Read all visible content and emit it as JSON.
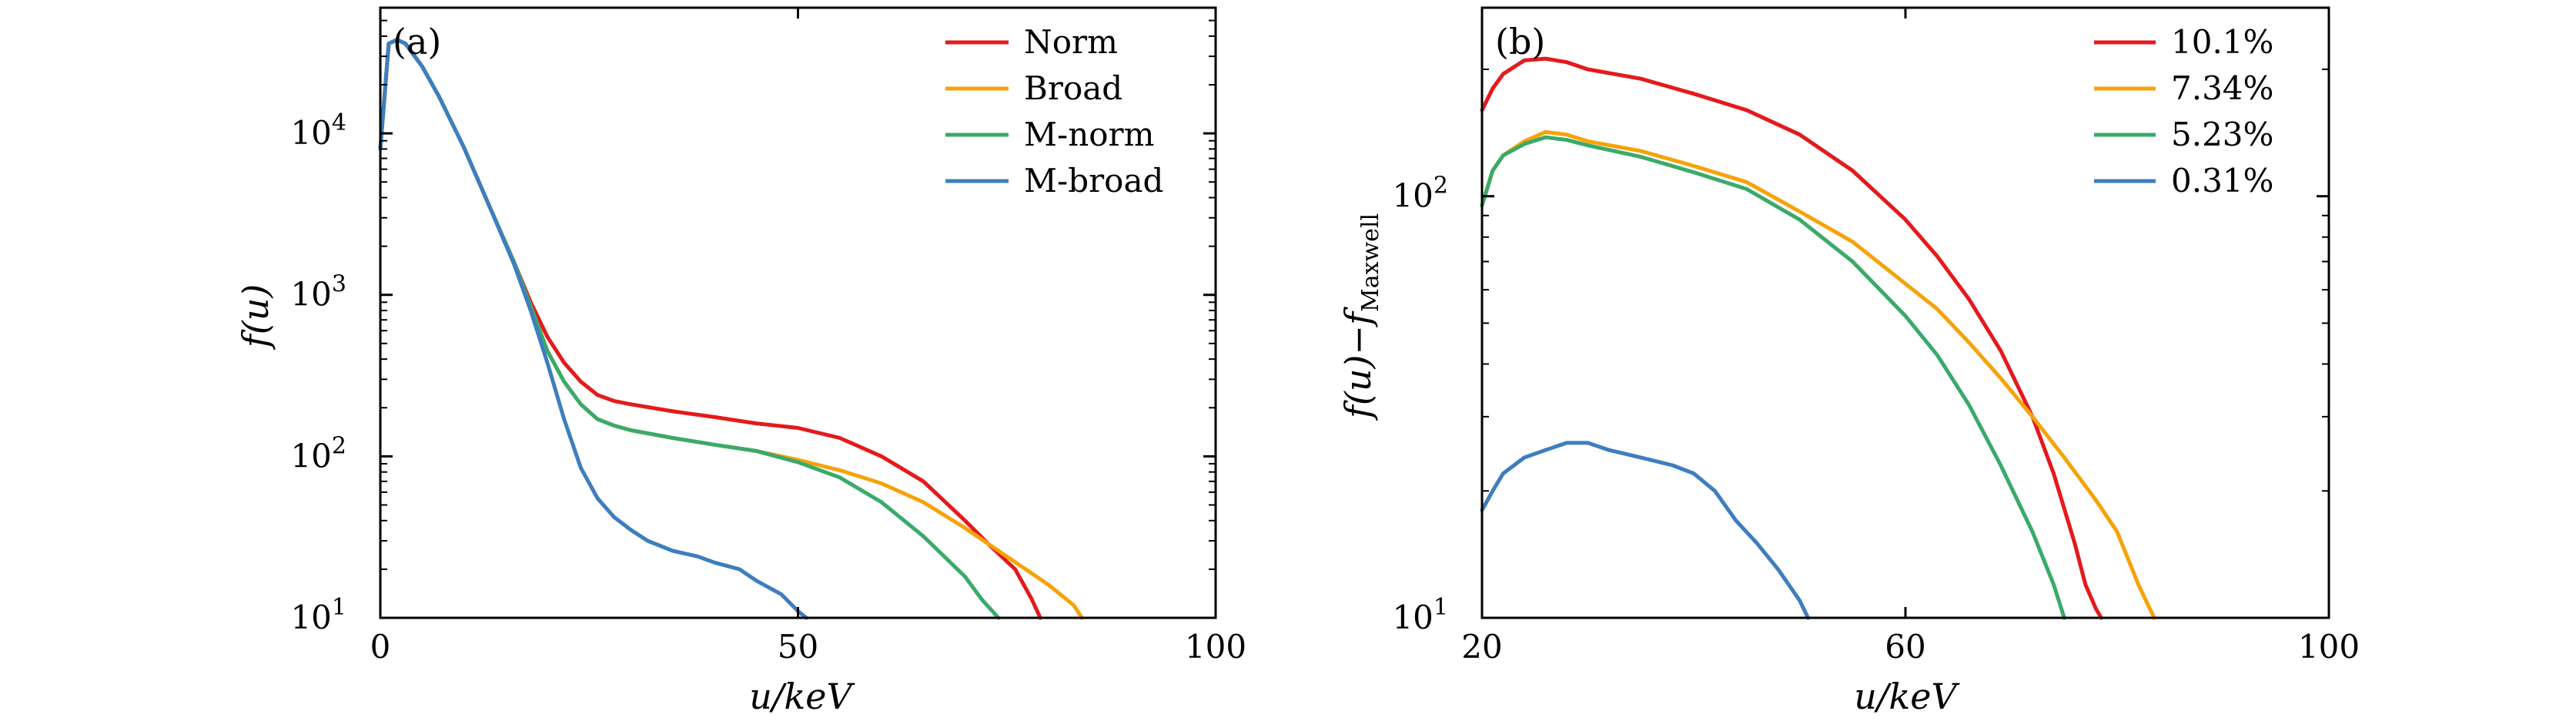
{
  "figure_caption": "",
  "chart_data": [
    {
      "type": "line",
      "panel_label": "(a)",
      "xlabel": "u/keV",
      "ylabel": "f(u)",
      "yscale": "log",
      "xlim": [
        0,
        100
      ],
      "ylim": [
        10,
        60000
      ],
      "x_ticks": [
        {
          "value": 0,
          "label": "0"
        },
        {
          "value": 50,
          "label": "50"
        },
        {
          "value": 100,
          "label": "100"
        }
      ],
      "y_ticks": [
        {
          "value": 10,
          "base": "10",
          "exp": "1"
        },
        {
          "value": 100,
          "base": "10",
          "exp": "2"
        },
        {
          "value": 1000,
          "base": "10",
          "exp": "3"
        },
        {
          "value": 10000,
          "base": "10",
          "exp": "4"
        }
      ],
      "legend_position": "top-right",
      "series": [
        {
          "name": "Norm",
          "color": "#e41a1c",
          "x": [
            0,
            1,
            2,
            3,
            5,
            7,
            10,
            13,
            16,
            18,
            20,
            22,
            24,
            26,
            28,
            30,
            35,
            40,
            45,
            50,
            55,
            60,
            65,
            70,
            73,
            76,
            78,
            79
          ],
          "y": [
            8000,
            36000,
            38000,
            36000,
            26000,
            17000,
            8200,
            3600,
            1600,
            900,
            550,
            380,
            290,
            240,
            220,
            210,
            190,
            175,
            160,
            150,
            130,
            100,
            70,
            40,
            28,
            20,
            13,
            10
          ]
        },
        {
          "name": "Broad",
          "color": "#f5a30a",
          "x": [
            0,
            1,
            2,
            3,
            5,
            7,
            10,
            13,
            16,
            18,
            20,
            22,
            24,
            26,
            28,
            30,
            35,
            40,
            45,
            50,
            55,
            60,
            65,
            70,
            75,
            80,
            83,
            84
          ],
          "y": [
            8000,
            36000,
            38000,
            36000,
            26000,
            17000,
            8200,
            3600,
            1600,
            850,
            450,
            290,
            210,
            170,
            155,
            145,
            130,
            118,
            108,
            95,
            82,
            68,
            52,
            36,
            24,
            16,
            12,
            10
          ]
        },
        {
          "name": "M-norm",
          "color": "#3aaa6a",
          "x": [
            0,
            1,
            2,
            3,
            5,
            7,
            10,
            13,
            16,
            18,
            20,
            22,
            24,
            26,
            28,
            30,
            35,
            40,
            45,
            50,
            55,
            60,
            65,
            70,
            72,
            74
          ],
          "y": [
            8000,
            36000,
            38000,
            36000,
            26000,
            17000,
            8200,
            3600,
            1600,
            850,
            450,
            290,
            210,
            170,
            155,
            145,
            130,
            118,
            108,
            92,
            74,
            52,
            32,
            18,
            13,
            10
          ]
        },
        {
          "name": "M-broad",
          "color": "#3d7ebf",
          "x": [
            0,
            1,
            2,
            3,
            5,
            7,
            10,
            13,
            16,
            18,
            20,
            22,
            24,
            26,
            28,
            30,
            32,
            35,
            38,
            40,
            43,
            45,
            48,
            50,
            51
          ],
          "y": [
            8000,
            36000,
            38000,
            36000,
            26000,
            17000,
            8200,
            3600,
            1550,
            800,
            380,
            170,
            85,
            55,
            42,
            35,
            30,
            26,
            24,
            22,
            20,
            17,
            14,
            11,
            10
          ]
        }
      ]
    },
    {
      "type": "line",
      "panel_label": "(b)",
      "xlabel": "u/keV",
      "ylabel": "f(u)−f",
      "ylabel_sub": "Maxwell",
      "yscale": "log",
      "xlim": [
        20,
        100
      ],
      "ylim": [
        10,
        280
      ],
      "x_ticks": [
        {
          "value": 20,
          "label": "20"
        },
        {
          "value": 60,
          "label": "60"
        },
        {
          "value": 100,
          "label": "100"
        }
      ],
      "y_ticks": [
        {
          "value": 10,
          "base": "10",
          "exp": "1"
        },
        {
          "value": 100,
          "base": "10",
          "exp": "2"
        }
      ],
      "legend_position": "top-right",
      "series": [
        {
          "name": "10.1%",
          "color": "#e41a1c",
          "x": [
            20,
            21,
            22,
            24,
            26,
            28,
            30,
            35,
            40,
            45,
            50,
            55,
            60,
            63,
            66,
            69,
            72,
            74,
            76,
            77,
            78,
            78.5
          ],
          "y": [
            160,
            180,
            195,
            210,
            212,
            208,
            200,
            190,
            175,
            160,
            140,
            115,
            88,
            72,
            57,
            43,
            30,
            22,
            15,
            12,
            10.5,
            10
          ]
        },
        {
          "name": "7.34%",
          "color": "#f5a30a",
          "x": [
            20,
            21,
            22,
            24,
            26,
            28,
            30,
            35,
            40,
            45,
            50,
            55,
            60,
            63,
            66,
            69,
            72,
            75,
            78,
            80,
            82,
            83.5
          ],
          "y": [
            95,
            115,
            125,
            135,
            142,
            140,
            135,
            128,
            118,
            108,
            92,
            78,
            62,
            54,
            45,
            37,
            30,
            24,
            19,
            16,
            12,
            10
          ]
        },
        {
          "name": "5.23%",
          "color": "#3aaa6a",
          "x": [
            20,
            21,
            22,
            24,
            26,
            28,
            30,
            35,
            40,
            45,
            50,
            55,
            60,
            63,
            66,
            69,
            72,
            74,
            75
          ],
          "y": [
            95,
            115,
            125,
            133,
            138,
            136,
            132,
            124,
            114,
            104,
            88,
            70,
            52,
            42,
            32,
            23,
            16,
            12,
            10
          ]
        },
        {
          "name": "0.31%",
          "color": "#3d7ebf",
          "x": [
            20,
            21,
            22,
            24,
            26,
            28,
            30,
            32,
            35,
            38,
            40,
            42,
            44,
            46,
            48,
            50,
            50.8
          ],
          "y": [
            18,
            20,
            22,
            24,
            25,
            26,
            26,
            25,
            24,
            23,
            22,
            20,
            17,
            15,
            13,
            11,
            10
          ]
        }
      ]
    }
  ]
}
